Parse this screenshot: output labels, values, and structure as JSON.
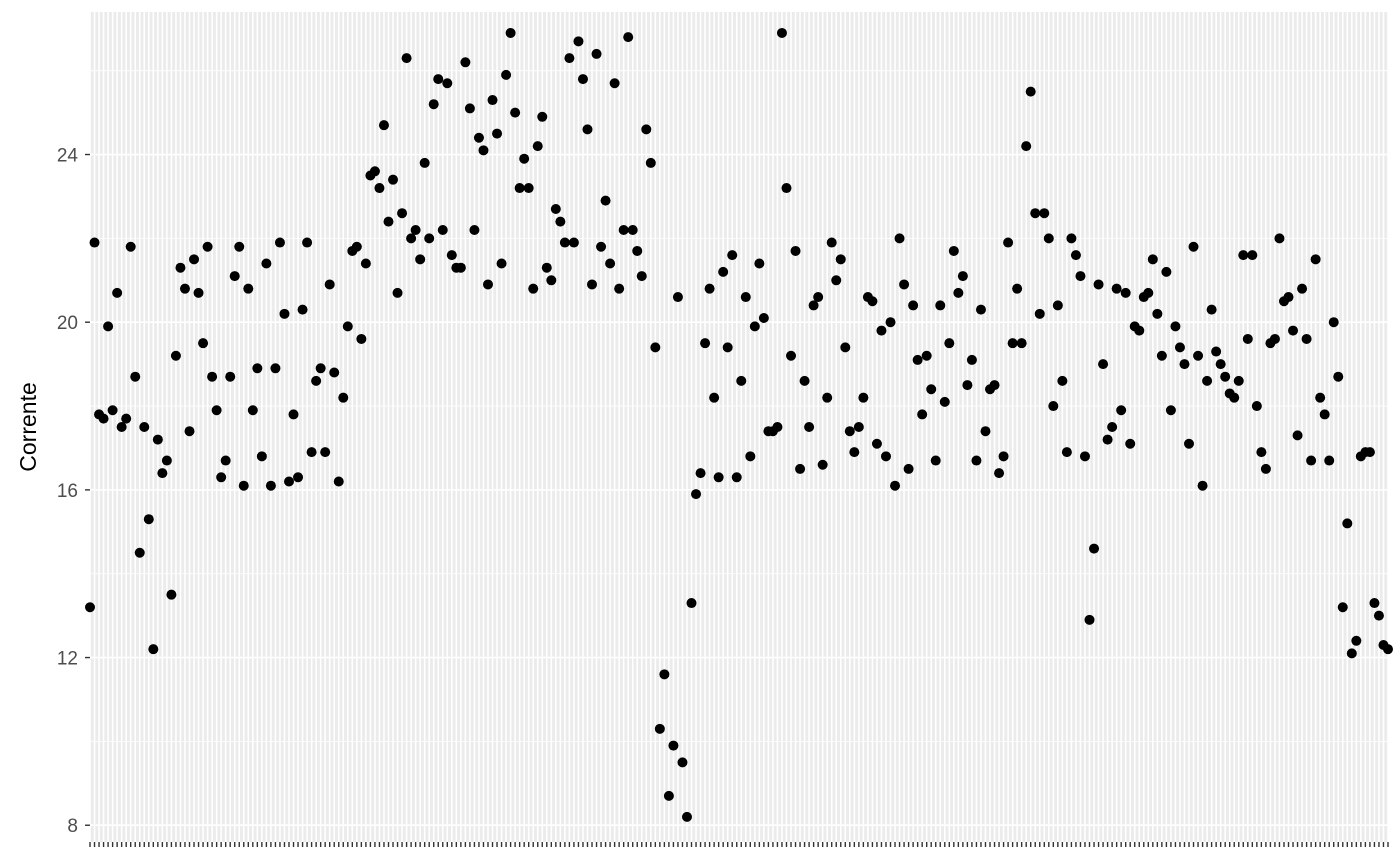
{
  "chart_data": {
    "type": "scatter",
    "title": "",
    "xlabel": "",
    "ylabel": "Corrente",
    "ylim": [
      7.6,
      27.4
    ],
    "y_ticks": [
      8,
      12,
      16,
      20,
      24
    ],
    "y_tick_labels": [
      "8",
      "12",
      "16",
      "20",
      "24"
    ],
    "x_axis": "categorical, one category per point, no tick labels",
    "grid": true,
    "legend": "none",
    "point_color": "#000000",
    "panel_color": "#ebebeb",
    "values": [
      13.2,
      21.9,
      17.8,
      17.7,
      19.9,
      17.9,
      20.7,
      17.5,
      17.7,
      21.8,
      18.7,
      14.5,
      17.5,
      15.3,
      12.2,
      17.2,
      16.4,
      16.7,
      13.5,
      19.2,
      21.3,
      20.8,
      17.4,
      21.5,
      20.7,
      19.5,
      21.8,
      18.7,
      17.9,
      16.3,
      16.7,
      18.7,
      21.1,
      21.8,
      16.1,
      20.8,
      17.9,
      18.9,
      16.8,
      21.4,
      16.1,
      18.9,
      21.9,
      20.2,
      16.2,
      17.8,
      16.3,
      20.3,
      21.9,
      16.9,
      18.6,
      18.9,
      16.9,
      20.9,
      18.8,
      16.2,
      18.2,
      19.9,
      21.7,
      21.8,
      19.6,
      21.4,
      23.5,
      23.6,
      23.2,
      24.7,
      22.4,
      23.4,
      20.7,
      22.6,
      26.3,
      22.0,
      22.2,
      21.5,
      23.8,
      22.0,
      25.2,
      25.8,
      22.2,
      25.7,
      21.6,
      21.3,
      21.3,
      26.2,
      25.1,
      22.2,
      24.4,
      24.1,
      20.9,
      25.3,
      24.5,
      21.4,
      25.9,
      26.9,
      25.0,
      23.2,
      23.9,
      23.2,
      20.8,
      24.2,
      24.9,
      21.3,
      21.0,
      22.7,
      22.4,
      21.9,
      26.3,
      21.9,
      26.7,
      25.8,
      24.6,
      20.9,
      26.4,
      21.8,
      22.9,
      21.4,
      25.7,
      20.8,
      22.2,
      26.8,
      22.2,
      21.7,
      21.1,
      24.6,
      23.8,
      19.4,
      10.3,
      11.6,
      8.7,
      9.9,
      20.6,
      9.5,
      8.2,
      13.3,
      15.9,
      16.4,
      19.5,
      20.8,
      18.2,
      16.3,
      21.2,
      19.4,
      21.6,
      16.3,
      18.6,
      20.6,
      16.8,
      19.9,
      21.4,
      20.1,
      17.4,
      17.4,
      17.5,
      26.9,
      23.2,
      19.2,
      21.7,
      16.5,
      18.6,
      17.5,
      20.4,
      20.6,
      16.6,
      18.2,
      21.9,
      21.0,
      21.5,
      19.4,
      17.4,
      16.9,
      17.5,
      18.2,
      20.6,
      20.5,
      17.1,
      19.8,
      16.8,
      20.0,
      16.1,
      22.0,
      20.9,
      16.5,
      20.4,
      19.1,
      17.8,
      19.2,
      18.4,
      16.7,
      20.4,
      18.1,
      19.5,
      21.7,
      20.7,
      21.1,
      18.5,
      19.1,
      16.7,
      20.3,
      17.4,
      18.4,
      18.5,
      16.4,
      16.8,
      21.9,
      19.5,
      20.8,
      19.5,
      24.2,
      25.5,
      22.6,
      20.2,
      22.6,
      22.0,
      18.0,
      20.4,
      18.6,
      16.9,
      22.0,
      21.6,
      21.1,
      16.8,
      12.9,
      14.6,
      20.9,
      19.0,
      17.2,
      17.5,
      20.8,
      17.9,
      20.7,
      17.1,
      19.9,
      19.8,
      20.6,
      20.7,
      21.5,
      20.2,
      19.2,
      21.2,
      17.9,
      19.9,
      19.4,
      19.0,
      17.1,
      21.8,
      19.2,
      16.1,
      18.6,
      20.3,
      19.3,
      19.0,
      18.7,
      18.3,
      18.2,
      18.6,
      21.6,
      19.6,
      21.6,
      18.0,
      16.9,
      16.5,
      19.5,
      19.6,
      22.0,
      20.5,
      20.6,
      19.8,
      17.3,
      20.8,
      19.6,
      16.7,
      21.5,
      18.2,
      17.8,
      16.7,
      20.0,
      18.7,
      13.2,
      15.2,
      12.1,
      12.4,
      16.8,
      16.9,
      16.9,
      13.3,
      13.0,
      12.3,
      12.2
    ]
  }
}
